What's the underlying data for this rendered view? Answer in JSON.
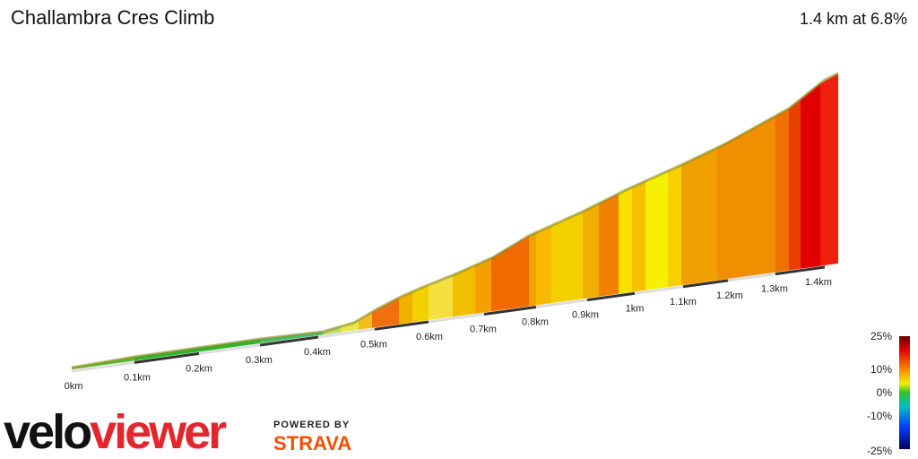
{
  "header": {
    "title": "Challambra Cres Climb",
    "summary": "1.4 km at 6.8%"
  },
  "distance_labels": [
    "0km",
    "0.1km",
    "0.2km",
    "0.3km",
    "0.4km",
    "0.5km",
    "0.6km",
    "0.7km",
    "0.8km",
    "0.9km",
    "1km",
    "1.1km",
    "1.2km",
    "1.3km",
    "1.4km"
  ],
  "gradient_legend": [
    "25%",
    "10%",
    "0%",
    "-10%",
    "-25%"
  ],
  "branding": {
    "logo_dark": "velo",
    "logo_red": "viewer",
    "powered_by": "POWERED BY",
    "strava": "STRAVA"
  }
}
